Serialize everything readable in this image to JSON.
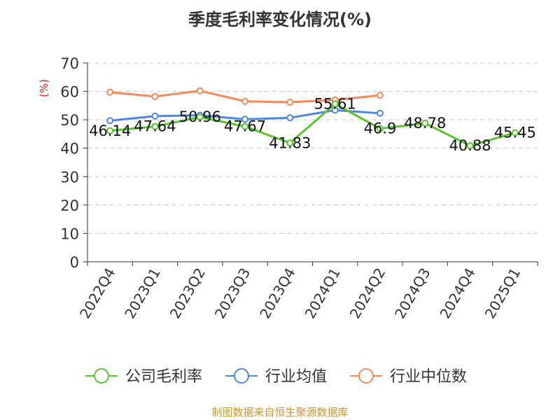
{
  "chart_data": {
    "type": "line",
    "title": "季度毛利率变化情况(%)",
    "ylabel": "(%)",
    "ylim": [
      0,
      70
    ],
    "yticks": [
      0,
      10,
      20,
      30,
      40,
      50,
      60,
      70
    ],
    "grid": true,
    "legend_position": "bottom",
    "categories": [
      "2022Q4",
      "2023Q1",
      "2023Q2",
      "2023Q3",
      "2023Q4",
      "2024Q1",
      "2024Q2",
      "2024Q3",
      "2024Q4",
      "2025Q1"
    ],
    "series": [
      {
        "name": "公司毛利率",
        "color": "#5bc42d",
        "labeled": true,
        "values": [
          46.14,
          47.64,
          50.96,
          47.67,
          41.83,
          55.61,
          46.9,
          48.78,
          40.88,
          45.45
        ]
      },
      {
        "name": "行业均值",
        "color": "#4f86e0",
        "labeled": false,
        "values": [
          49.7,
          51.3,
          51.6,
          50.2,
          50.7,
          53.4,
          52.3,
          null,
          null,
          null
        ]
      },
      {
        "name": "行业中位数",
        "color": "#f28a5b",
        "labeled": false,
        "values": [
          59.7,
          58.2,
          60.2,
          56.5,
          56.2,
          57.0,
          58.6,
          null,
          null,
          null
        ]
      }
    ]
  },
  "source": "制图数据来自恒生聚源数据库"
}
